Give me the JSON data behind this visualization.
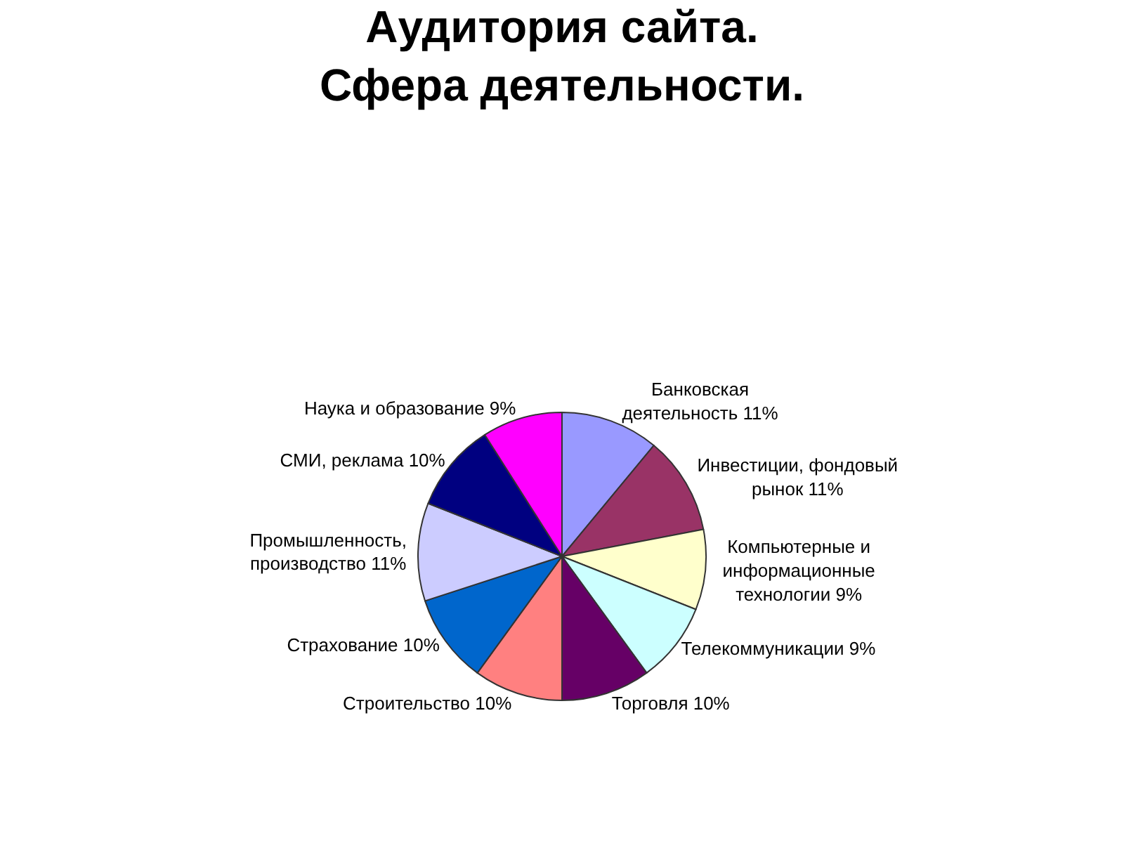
{
  "chart_data": {
    "type": "pie",
    "title": "Аудитория сайта.\nСфера деятельности.",
    "categories": [
      "Банковская деятельность",
      "Инвестиции, фондовый рынок",
      "Компьютерные и информационные технологии",
      "Телекоммуникации",
      "Торговля",
      "Строительство",
      "Страхование",
      "Промышленность, производство",
      "СМИ, реклама",
      "Наука и образование"
    ],
    "values": [
      11,
      11,
      9,
      9,
      10,
      10,
      10,
      11,
      10,
      9
    ],
    "value_labels": [
      "11%",
      "11%",
      "9%",
      "9%",
      "10%",
      "10%",
      "10%",
      "11%",
      "10%",
      "9%"
    ],
    "colors": [
      "#9999ff",
      "#993366",
      "#ffffcc",
      "#ccffff",
      "#660066",
      "#ff8080",
      "#0066cc",
      "#ccccff",
      "#000080",
      "#ff00ff"
    ],
    "legend": false
  }
}
